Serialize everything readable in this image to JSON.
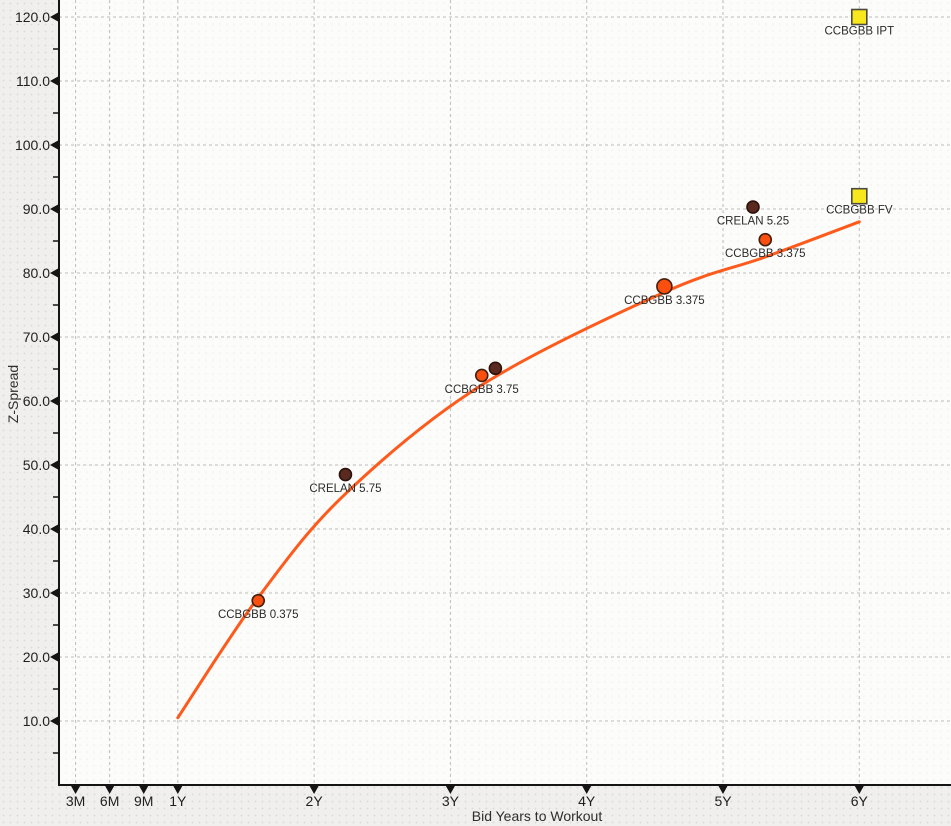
{
  "chart": {
    "xlabel": "Bid Years to Workout",
    "ylabel": "Z-Spread"
  },
  "chart_data": {
    "type": "scatter",
    "title": "",
    "xlabel": "Bid Years to Workout",
    "ylabel": "Z-Spread",
    "grid": "dashed",
    "legend": "none",
    "x_ticks": [
      {
        "label": "3M",
        "years": 0.25
      },
      {
        "label": "6M",
        "years": 0.5
      },
      {
        "label": "9M",
        "years": 0.75
      },
      {
        "label": "1Y",
        "years": 1
      },
      {
        "label": "2Y",
        "years": 2
      },
      {
        "label": "3Y",
        "years": 3
      },
      {
        "label": "4Y",
        "years": 4
      },
      {
        "label": "5Y",
        "years": 5
      },
      {
        "label": "6Y",
        "years": 6
      }
    ],
    "y_ticks": [
      {
        "label": "10.0",
        "value": 10
      },
      {
        "label": "20.0",
        "value": 20
      },
      {
        "label": "30.0",
        "value": 30
      },
      {
        "label": "40.0",
        "value": 40
      },
      {
        "label": "50.0",
        "value": 50
      },
      {
        "label": "60.0",
        "value": 60
      },
      {
        "label": "70.0",
        "value": 70
      },
      {
        "label": "80.0",
        "value": 80
      },
      {
        "label": "90.0",
        "value": 90
      },
      {
        "label": "100.0",
        "value": 100
      },
      {
        "label": "110.0",
        "value": 110
      },
      {
        "label": "120.0",
        "value": 120
      }
    ],
    "y_minor_tick_values": [
      5,
      15,
      25,
      35,
      45,
      55,
      65,
      75,
      85,
      95,
      105,
      115
    ],
    "ylim": [
      0,
      122.5
    ],
    "xlim_years": [
      0.13,
      6.68
    ],
    "points": [
      {
        "label": "CCBGBB IPT",
        "x_years": 6.0,
        "y": 120.0,
        "marker": "square",
        "series": "ipt",
        "size": "square"
      },
      {
        "label": "CCBGBB FV",
        "x_years": 6.0,
        "y": 92.0,
        "marker": "square",
        "series": "ipt",
        "size": "square"
      },
      {
        "label": "CRELAN 5.25",
        "x_years": 5.22,
        "y": 90.3,
        "marker": "circle",
        "series": "crelan",
        "size": "normal"
      },
      {
        "label": "CCBGBB 3.375",
        "x_years": 5.31,
        "y": 85.2,
        "marker": "circle",
        "series": "ccbgbb",
        "size": "normal"
      },
      {
        "label": "CCBGBB 3.375",
        "x_years": 4.57,
        "y": 77.9,
        "marker": "circle",
        "series": "ccbgbb",
        "size": "large"
      },
      {
        "label": "",
        "x_years": 3.33,
        "y": 65.1,
        "marker": "circle",
        "series": "crelan",
        "size": "normal"
      },
      {
        "label": "CCBGBB 3.75",
        "x_years": 3.23,
        "y": 64.0,
        "marker": "circle",
        "series": "ccbgbb",
        "size": "normal"
      },
      {
        "label": "CRELAN 5.75",
        "x_years": 2.23,
        "y": 48.5,
        "marker": "circle",
        "series": "crelan",
        "size": "normal"
      },
      {
        "label": "CCBGBB 0.375",
        "x_years": 1.59,
        "y": 28.8,
        "marker": "circle",
        "series": "ccbgbb",
        "size": "normal"
      }
    ],
    "curve": {
      "name": "fitted-z-spread-curve",
      "points": [
        {
          "x_years": 1.0,
          "y": 10.5
        },
        {
          "x_years": 1.59,
          "y": 29.3
        },
        {
          "x_years": 2.23,
          "y": 45.5
        },
        {
          "x_years": 3.23,
          "y": 62.5
        },
        {
          "x_years": 4.57,
          "y": 77.0
        },
        {
          "x_years": 5.31,
          "y": 82.5
        },
        {
          "x_years": 6.0,
          "y": 88.0
        }
      ]
    },
    "colors": {
      "curve": "#fd5a1c",
      "ccbgbb_fill": "#fb4f0f",
      "ccbgbb_stroke": "#42200f",
      "crelan_fill": "#5a2a20",
      "crelan_stroke": "#2c120a",
      "ipt_fill": "#f8e71c",
      "ipt_stroke": "#4a4a40",
      "grid": "#bdbdbd",
      "axis": "#141414",
      "tick_text": "#1f1f1f",
      "point_label_text": "#2b2b2b"
    }
  }
}
